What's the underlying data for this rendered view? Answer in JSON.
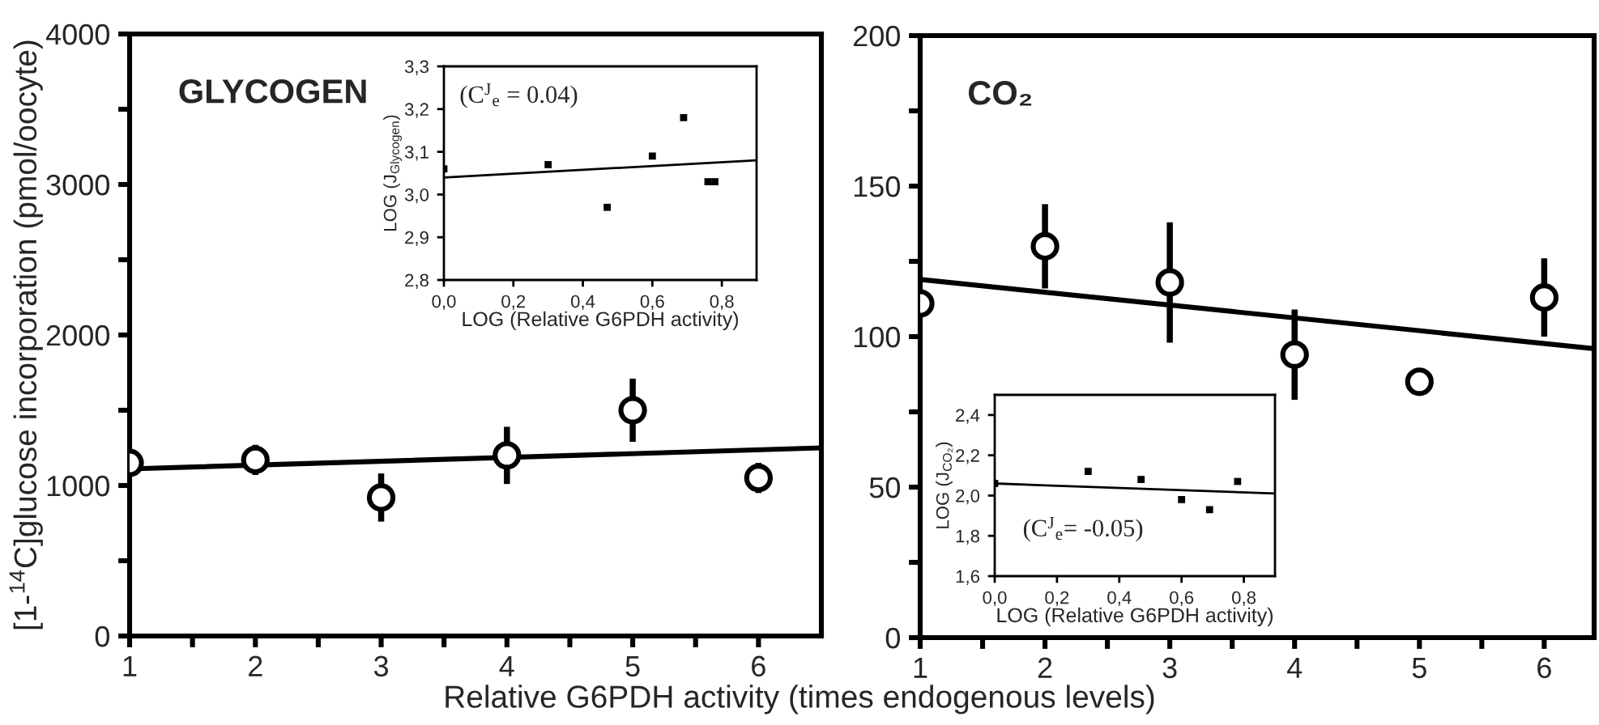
{
  "chart_data": [
    {
      "type": "scatter",
      "title": "GLYCOGEN",
      "xlabel": "Relative G6PDH activity (times endogenous levels)",
      "ylabel": "[1-$^{14}$C]glucose incorporation (pmol/oocyte)",
      "grid": false,
      "legend": false,
      "xlim": [
        1,
        6.5
      ],
      "xticks": [
        1,
        {
          "value": 1.5,
          "label": null
        },
        2,
        {
          "value": 2.5,
          "label": null
        },
        3,
        {
          "value": 3.5,
          "label": null
        },
        4,
        {
          "value": 4.5,
          "label": null
        },
        5,
        {
          "value": 5.5,
          "label": null
        },
        6
      ],
      "ylim": [
        0,
        4000
      ],
      "yticks": [
        0,
        {
          "value": 500,
          "label": null
        },
        1000,
        {
          "value": 1500,
          "label": null
        },
        2000,
        {
          "value": 2500,
          "label": null
        },
        3000,
        {
          "value": 3500,
          "label": null
        },
        4000
      ],
      "series": [
        {
          "marker": "circle",
          "color": "#000000",
          "x": [
            1,
            2,
            3,
            4,
            5,
            6
          ],
          "values": [
            1150,
            1170,
            920,
            1200,
            1500,
            1050
          ],
          "errors": [
            null,
            100,
            160,
            190,
            210,
            100
          ]
        },
        {
          "type": "line",
          "color": "#000000",
          "x": [
            1,
            6.5
          ],
          "values": [
            1110,
            1250
          ]
        }
      ]
    },
    {
      "type": "scatter",
      "xlabel": "LOG (Relative G6PDH activity)",
      "ylabel": "LOG (J$_{Glycogen}$)",
      "grid": false,
      "legend": false,
      "annotations": [
        "(C$^{J}$$_{e}$ = 0.04)"
      ],
      "xlim": [
        0,
        0.9
      ],
      "xticks": [
        {
          "value": 0,
          "label": "0,0"
        },
        {
          "value": 0.2,
          "label": "0,2"
        },
        {
          "value": 0.4,
          "label": "0,4"
        },
        {
          "value": 0.6,
          "label": "0,6"
        },
        {
          "value": 0.8,
          "label": "0,8"
        }
      ],
      "ylim": [
        2.8,
        3.3
      ],
      "yticks": [
        {
          "value": 2.8,
          "label": "2,8"
        },
        {
          "value": 2.9,
          "label": "2,9"
        },
        {
          "value": 3.0,
          "label": "3,0"
        },
        {
          "value": 3.1,
          "label": "3,1"
        },
        {
          "value": 3.2,
          "label": "3,2"
        },
        {
          "value": 3.3,
          "label": "3,3"
        }
      ],
      "series": [
        {
          "marker": "square",
          "color": "#000000",
          "x": [
            0,
            0.3,
            0.47,
            0.6,
            0.69,
            0.76,
            0.78
          ],
          "values": [
            3.06,
            3.07,
            2.97,
            3.09,
            3.18,
            3.03,
            3.03
          ]
        },
        {
          "type": "line",
          "color": "#000000",
          "x": [
            0,
            0.9
          ],
          "values": [
            3.04,
            3.08
          ]
        }
      ]
    },
    {
      "type": "scatter",
      "title": "CO₂",
      "grid": false,
      "legend": false,
      "xlim": [
        1,
        6.4
      ],
      "xticks": [
        1,
        {
          "value": 1.5,
          "label": null
        },
        2,
        {
          "value": 2.5,
          "label": null
        },
        3,
        {
          "value": 3.5,
          "label": null
        },
        4,
        {
          "value": 4.5,
          "label": null
        },
        5,
        {
          "value": 5.5,
          "label": null
        },
        6
      ],
      "ylim": [
        0,
        200
      ],
      "yticks": [
        0,
        {
          "value": 25,
          "label": null
        },
        50,
        {
          "value": 75,
          "label": null
        },
        100,
        {
          "value": 125,
          "label": null
        },
        150,
        {
          "value": 175,
          "label": null
        },
        200
      ],
      "series": [
        {
          "marker": "circle",
          "color": "#000000",
          "x": [
            1,
            2,
            3,
            4,
            5,
            6
          ],
          "values": [
            111,
            130,
            118,
            94,
            85,
            113
          ],
          "errors": [
            null,
            14,
            20,
            15,
            null,
            13
          ]
        },
        {
          "type": "line",
          "color": "#000000",
          "x": [
            1,
            6.4
          ],
          "values": [
            119,
            96
          ]
        }
      ]
    },
    {
      "type": "scatter",
      "xlabel": "LOG (Relative G6PDH activity)",
      "ylabel": "LOG (J$_{CO₂}$)",
      "grid": false,
      "legend": false,
      "annotations": [
        "(C$^{J}$$_{e}$= -0.05)"
      ],
      "xlim": [
        0,
        0.9
      ],
      "xticks": [
        {
          "value": 0,
          "label": "0,0"
        },
        {
          "value": 0.2,
          "label": "0,2"
        },
        {
          "value": 0.4,
          "label": "0,4"
        },
        {
          "value": 0.6,
          "label": "0,6"
        },
        {
          "value": 0.8,
          "label": "0,8"
        }
      ],
      "ylim": [
        1.6,
        2.5
      ],
      "yticks": [
        {
          "value": 1.6,
          "label": "1,6"
        },
        {
          "value": 1.8,
          "label": "1,8"
        },
        {
          "value": 2.0,
          "label": "2,0"
        },
        {
          "value": 2.2,
          "label": "2,2"
        },
        {
          "value": 2.4,
          "label": "2,4"
        }
      ],
      "series": [
        {
          "marker": "square",
          "color": "#000000",
          "x": [
            0,
            0.3,
            0.47,
            0.6,
            0.69,
            0.78
          ],
          "values": [
            2.06,
            2.12,
            2.08,
            1.98,
            1.93,
            2.07
          ]
        },
        {
          "type": "line",
          "color": "#000000",
          "x": [
            0,
            0.9
          ],
          "values": [
            2.06,
            2.01
          ]
        }
      ]
    }
  ]
}
